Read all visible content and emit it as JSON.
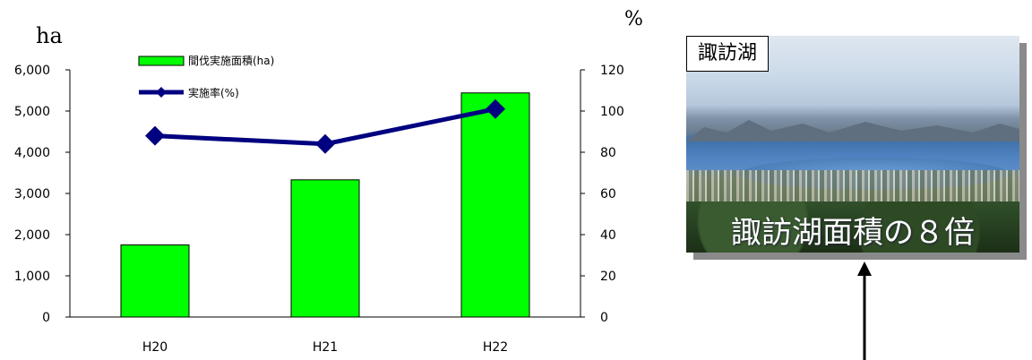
{
  "chart_data": {
    "type": "bar+line",
    "categories": [
      "H20",
      "H21",
      "H22"
    ],
    "series": [
      {
        "name": "間伐実施面積(ha)",
        "type": "bar",
        "axis": "left",
        "color": "#00ff00",
        "values": [
          1750,
          3330,
          5440
        ]
      },
      {
        "name": "実施率(%)",
        "type": "line",
        "axis": "right",
        "color": "#000080",
        "marker": "diamond",
        "values": [
          88,
          84,
          101
        ]
      }
    ],
    "left_unit": "ha",
    "right_unit": "%",
    "y_left": {
      "min": 0,
      "max": 6000,
      "ticks": [
        "0",
        "1,000",
        "2,000",
        "3,000",
        "4,000",
        "5,000",
        "6,000"
      ]
    },
    "y_right": {
      "min": 0,
      "max": 120,
      "ticks": [
        "0",
        "20",
        "40",
        "60",
        "80",
        "100",
        "120"
      ]
    },
    "legend_position": "top-left",
    "grid": false
  },
  "photo": {
    "label": "諏訪湖",
    "caption": "諏訪湖面積の８倍"
  }
}
